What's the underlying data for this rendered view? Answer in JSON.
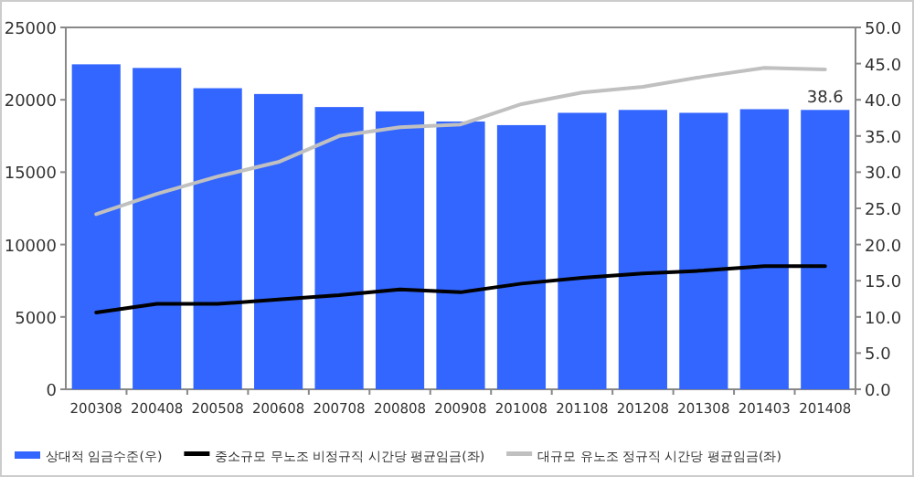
{
  "chart_data": {
    "type": "bar",
    "categories": [
      "200308",
      "200408",
      "200508",
      "200608",
      "200708",
      "200808",
      "200908",
      "201008",
      "201108",
      "201208",
      "201308",
      "201403",
      "201408"
    ],
    "series": [
      {
        "name": "상대적 임금수준(우)",
        "axis": "y2",
        "color": "#3366ff",
        "values": [
          44.9,
          44.4,
          41.6,
          40.8,
          39.0,
          38.4,
          37.0,
          36.5,
          38.2,
          38.6,
          38.2,
          38.7,
          38.6
        ],
        "value_labels": [
          null,
          null,
          null,
          null,
          null,
          null,
          null,
          null,
          null,
          null,
          null,
          null,
          "38.6"
        ]
      },
      {
        "name": "중소규모 무노조 비정규직 시간당 평균임금(좌)",
        "type": "line",
        "color": "#000000",
        "values": [
          5300,
          5900,
          5900,
          6200,
          6500,
          6900,
          6700,
          7300,
          7700,
          8000,
          8200,
          8500,
          8500
        ]
      },
      {
        "name": "대규모 유노조 정규직 시간당 평균임금(좌)",
        "type": "line",
        "color": "#c0c0c0",
        "values": [
          12100,
          13500,
          14700,
          15700,
          17500,
          18100,
          18300,
          19700,
          20500,
          20900,
          21600,
          22200,
          22100
        ]
      }
    ],
    "ylim": [
      0,
      25000
    ],
    "yticks": [
      0,
      5000,
      10000,
      15000,
      20000,
      25000
    ],
    "y2lim": [
      0,
      50
    ],
    "y2ticks": [
      {
        "value": 0,
        "label": "0.0"
      },
      {
        "value": 5,
        "label": "5.0"
      },
      {
        "value": 10,
        "label": "10.0"
      },
      {
        "value": 15,
        "label": "15.0"
      },
      {
        "value": 20,
        "label": "20.0"
      },
      {
        "value": 25,
        "label": "25.0"
      },
      {
        "value": 30,
        "label": "30.0"
      },
      {
        "value": 35,
        "label": "35.0"
      },
      {
        "value": 40,
        "label": "40.0"
      },
      {
        "value": 45,
        "label": "45.0"
      },
      {
        "value": 50,
        "label": "50.0"
      }
    ],
    "legend": "bottom",
    "grid": false
  }
}
